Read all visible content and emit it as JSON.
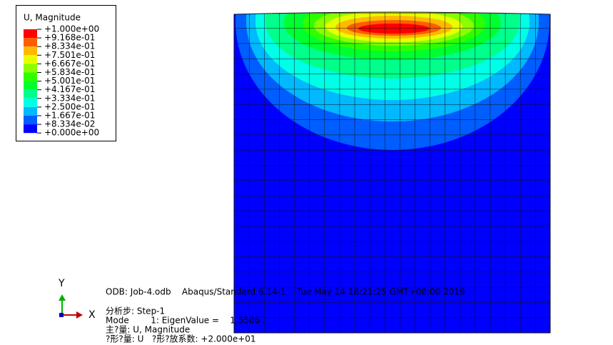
{
  "legend": {
    "title": "U, Magnitude",
    "labels": [
      "+1.000e+00",
      "+9.168e-01",
      "+8.334e-01",
      "+7.501e-01",
      "+6.667e-01",
      "+5.834e-01",
      "+5.001e-01",
      "+4.167e-01",
      "+3.334e-01",
      "+2.500e-01",
      "+1.667e-01",
      "+8.334e-02",
      "+0.000e+00"
    ],
    "colors": [
      "#ff0000",
      "#ff5d00",
      "#ffb900",
      "#e7ff00",
      "#8bff00",
      "#2eff00",
      "#00ff2e",
      "#00ff8b",
      "#00ffe7",
      "#00b9ff",
      "#005dff",
      "#0000ff"
    ]
  },
  "triad": {
    "y": "Y",
    "x": "X"
  },
  "info": {
    "odb": "ODB: Job-4.odb    Abaqus/Standard 6.14-1    Tue May 14 18:21:25 GMT+08:00 2019",
    "step": "分析步: Step-1",
    "mode": "Mode        1: EigenValue =    1.5506",
    "primary": "主?量: U, Magnitude",
    "deformed": "?形?量: U   ?形?放系数: +2.000e+01"
  }
}
